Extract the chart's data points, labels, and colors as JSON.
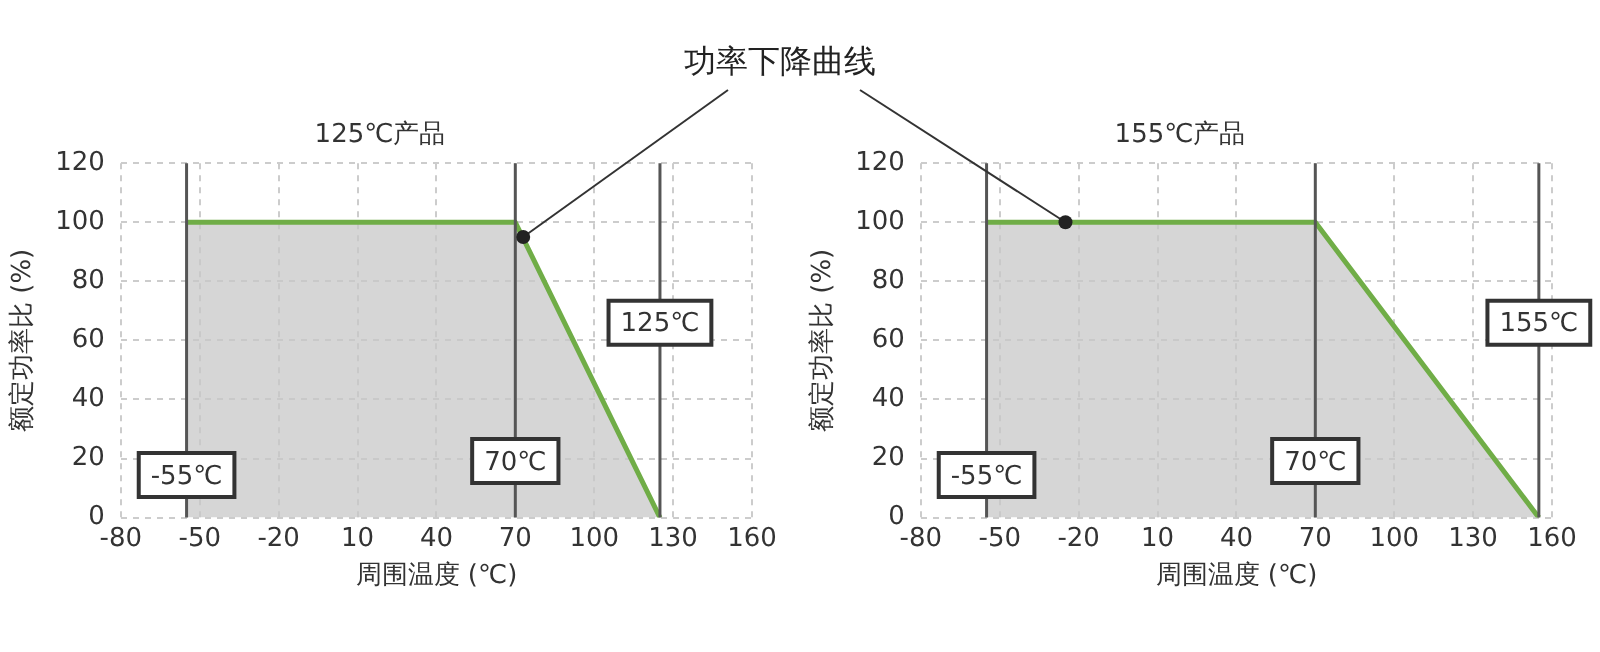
{
  "chart_data": [
    {
      "type": "area",
      "title": "125℃产品",
      "xlabel": "周围温度 (℃)",
      "ylabel": "额定功率比 (%)",
      "series": [
        {
          "color": "#70ad47",
          "x": [
            -55,
            70,
            125
          ],
          "values": [
            100,
            100,
            0
          ]
        }
      ],
      "xlim": [
        -80,
        160
      ],
      "xticks": [
        -80,
        -50,
        -20,
        10,
        40,
        70,
        100,
        130,
        160
      ],
      "ylim": [
        0,
        120
      ],
      "yticks": [
        0,
        20,
        40,
        60,
        80,
        100,
        120
      ],
      "grid": true,
      "ref_lines": [
        {
          "axis": "x",
          "value": -55,
          "label": "-55℃",
          "color": "#555555"
        },
        {
          "axis": "x",
          "value": 70,
          "label": "70℃",
          "color": "#555555"
        },
        {
          "axis": "x",
          "value": 125,
          "label": "125℃",
          "color": "#555555"
        }
      ],
      "annotations": [
        {
          "text": "功率下降曲线",
          "x": 73,
          "y": 95
        }
      ]
    },
    {
      "type": "area",
      "title": "155℃产品",
      "xlabel": "周围温度 (℃)",
      "ylabel": "额定功率比 (%)",
      "series": [
        {
          "color": "#70ad47",
          "x": [
            -55,
            70,
            155
          ],
          "values": [
            100,
            100,
            0
          ]
        }
      ],
      "xlim": [
        -80,
        160
      ],
      "xticks": [
        -80,
        -50,
        -20,
        10,
        40,
        70,
        100,
        130,
        160
      ],
      "ylim": [
        0,
        120
      ],
      "yticks": [
        0,
        20,
        40,
        60,
        80,
        100,
        120
      ],
      "grid": true,
      "ref_lines": [
        {
          "axis": "x",
          "value": -55,
          "label": "-55℃",
          "color": "#555555"
        },
        {
          "axis": "x",
          "value": 70,
          "label": "70℃",
          "color": "#555555"
        },
        {
          "axis": "x",
          "value": 155,
          "label": "155℃",
          "color": "#555555"
        }
      ],
      "line_style": "solid"
    }
  ]
}
